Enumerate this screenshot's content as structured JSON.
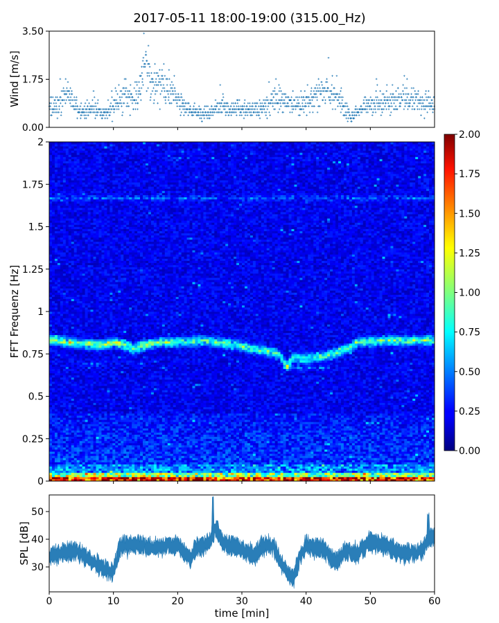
{
  "title": "2017-05-11 18:00-19:00 (315.00_Hz)",
  "chart_data": [
    {
      "type": "scatter",
      "ylabel": "Wind [m/s]",
      "xlim": [
        0,
        60
      ],
      "ylim": [
        0,
        3.5
      ],
      "yticks": [
        0.0,
        1.75,
        3.5
      ],
      "ytick_labels": [
        "0.00",
        "1.75",
        "3.50"
      ],
      "color": "#1f77b4",
      "marker": "+",
      "wind_profile": [
        [
          0,
          0.7
        ],
        [
          2,
          0.9
        ],
        [
          3,
          1.35
        ],
        [
          4,
          0.8
        ],
        [
          5,
          0.6
        ],
        [
          7,
          0.75
        ],
        [
          8,
          0.55
        ],
        [
          9,
          0.5
        ],
        [
          10,
          0.75
        ],
        [
          11,
          0.9
        ],
        [
          12,
          1.15
        ],
        [
          13,
          1.0
        ],
        [
          14,
          1.3
        ],
        [
          15,
          2.2
        ],
        [
          16,
          1.5
        ],
        [
          17,
          1.6
        ],
        [
          18,
          1.5
        ],
        [
          19,
          1.3
        ],
        [
          20,
          1.0
        ],
        [
          21,
          0.8
        ],
        [
          22,
          0.6
        ],
        [
          24,
          0.5
        ],
        [
          25,
          0.55
        ],
        [
          26,
          0.7
        ],
        [
          28,
          0.75
        ],
        [
          30,
          0.7
        ],
        [
          32,
          0.6
        ],
        [
          34,
          0.8
        ],
        [
          35,
          1.05
        ],
        [
          36,
          1.0
        ],
        [
          37,
          0.9
        ],
        [
          39,
          0.8
        ],
        [
          41,
          1.05
        ],
        [
          43,
          1.2
        ],
        [
          44,
          1.3
        ],
        [
          45,
          1.1
        ],
        [
          46,
          0.6
        ],
        [
          47,
          0.4
        ],
        [
          48,
          0.55
        ],
        [
          49,
          0.75
        ],
        [
          50,
          0.8
        ],
        [
          52,
          0.9
        ],
        [
          54,
          0.9
        ],
        [
          55,
          1.1
        ],
        [
          56,
          1.0
        ],
        [
          58,
          0.85
        ],
        [
          60,
          0.8
        ]
      ]
    },
    {
      "type": "heatmap",
      "ylabel": "FFT Frequenz [Hz]",
      "xlim": [
        0,
        60
      ],
      "ylim": [
        0,
        2
      ],
      "yticks": [
        0,
        0.25,
        0.5,
        0.75,
        1,
        1.25,
        1.5,
        1.75,
        2
      ],
      "ytick_labels": [
        "0",
        "0.25",
        "0.5",
        "0.75",
        "1",
        "1.25",
        "1.5",
        "1.75",
        "2"
      ],
      "colormap": "jet",
      "clim": [
        0.0,
        2.0
      ],
      "colorbar_ticks": [
        "0.00",
        "0.25",
        "0.50",
        "0.75",
        "1.00",
        "1.25",
        "1.50",
        "1.75",
        "2.00"
      ],
      "background_level": 0.2,
      "bright_band_hz": [
        [
          0,
          0.835
        ],
        [
          5,
          0.81
        ],
        [
          8,
          0.8
        ],
        [
          10,
          0.82
        ],
        [
          12,
          0.8
        ],
        [
          13,
          0.78
        ],
        [
          14,
          0.79
        ],
        [
          17,
          0.82
        ],
        [
          20,
          0.82
        ],
        [
          24,
          0.83
        ],
        [
          28,
          0.81
        ],
        [
          32,
          0.78
        ],
        [
          35,
          0.76
        ],
        [
          36,
          0.74
        ],
        [
          37,
          0.68
        ],
        [
          38,
          0.73
        ],
        [
          40,
          0.72
        ],
        [
          43,
          0.74
        ],
        [
          45,
          0.76
        ],
        [
          47,
          0.79
        ],
        [
          48,
          0.82
        ],
        [
          53,
          0.83
        ],
        [
          60,
          0.83
        ]
      ],
      "secondary_bands_hz": [
        {
          "from": 0,
          "to": 16,
          "hz": 0.82
        },
        {
          "from": 5,
          "to": 9,
          "hz": 0.69
        },
        {
          "from": 36,
          "to": 44,
          "hz": 0.67
        },
        {
          "from": 0,
          "to": 60,
          "hz": 1.67
        }
      ],
      "low_frequency_hz": [
        0.0,
        0.1
      ]
    },
    {
      "type": "area",
      "ylabel": "SPL [dB]",
      "xlabel": "time [min]",
      "xlim": [
        0,
        60
      ],
      "ylim": [
        21,
        56
      ],
      "yticks": [
        30,
        40,
        50
      ],
      "xticks": [
        0,
        10,
        20,
        30,
        40,
        50,
        60
      ],
      "color": "#1f77b4",
      "spl_mean": [
        [
          0,
          34
        ],
        [
          2,
          35
        ],
        [
          4,
          36
        ],
        [
          6,
          33
        ],
        [
          7,
          31.5
        ],
        [
          8,
          30
        ],
        [
          9,
          28.5
        ],
        [
          10,
          28
        ],
        [
          11,
          37
        ],
        [
          12,
          38
        ],
        [
          14,
          38
        ],
        [
          16,
          37
        ],
        [
          18,
          37.5
        ],
        [
          20,
          38
        ],
        [
          21,
          35
        ],
        [
          22,
          33
        ],
        [
          23,
          37
        ],
        [
          25,
          39
        ],
        [
          26,
          44
        ],
        [
          27,
          39
        ],
        [
          28,
          38
        ],
        [
          30,
          36.5
        ],
        [
          32,
          34
        ],
        [
          33,
          37
        ],
        [
          34,
          38
        ],
        [
          35,
          37
        ],
        [
          36,
          32
        ],
        [
          37,
          28
        ],
        [
          38,
          26
        ],
        [
          39,
          33
        ],
        [
          40,
          38
        ],
        [
          41,
          37
        ],
        [
          43,
          36
        ],
        [
          44,
          33
        ],
        [
          45,
          32
        ],
        [
          46,
          36
        ],
        [
          48,
          35
        ],
        [
          50,
          39
        ],
        [
          52,
          38
        ],
        [
          53,
          37
        ],
        [
          55,
          35
        ],
        [
          57,
          35
        ],
        [
          58,
          36
        ],
        [
          59,
          40
        ],
        [
          60,
          41
        ]
      ],
      "spl_spread": 2.6,
      "spl_peaks": [
        [
          25.5,
          55.5
        ],
        [
          59,
          50
        ]
      ]
    }
  ]
}
